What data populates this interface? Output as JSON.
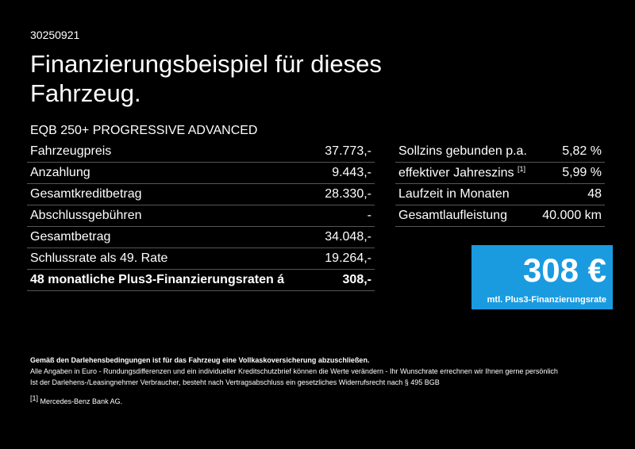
{
  "code": "30250921",
  "title": "Finanzierungsbeispiel für dieses Fahrzeug.",
  "model": "EQB 250+ PROGRESSIVE ADVANCED",
  "left_table": {
    "rows": [
      [
        "Fahrzeugpreis",
        "37.773,-"
      ],
      [
        "Anzahlung",
        "9.443,-"
      ],
      [
        "Gesamtkreditbetrag",
        "28.330,-"
      ],
      [
        "Abschlussgebühren",
        "-"
      ],
      [
        "Gesamtbetrag",
        "34.048,-"
      ],
      [
        "Schlussrate als 49. Rate",
        "19.264,-"
      ],
      [
        "48 monatliche Plus3-Finanzierungsraten á",
        "308,-"
      ]
    ]
  },
  "right_table": {
    "rows": [
      {
        "label": "Sollzins gebunden p.a.",
        "value": "5,82 %"
      },
      {
        "label": "effektiver Jahreszins",
        "note": "[1]",
        "value": "5,99 %"
      },
      {
        "label": "Laufzeit in Monaten",
        "value": "48"
      },
      {
        "label": "Gesamtlaufleistung",
        "value": "40.000 km"
      }
    ]
  },
  "rate": {
    "amount": "308 €",
    "label": "mtl. Plus3-Finanzierungsrate"
  },
  "footer": {
    "bold": "Gemäß den Darlehensbedingungen ist für das Fahrzeug eine Vollkaskoversicherung abzuschließen.",
    "lines": [
      "Alle Angaben in Euro - Rundungsdifferenzen und ein individueller Kreditschutzbrief können die Werte verändern - Ihr Wunschrate errechnen wir Ihnen gerne persönlich",
      "Ist der Darlehens-/Leasingnehmer Verbraucher, besteht nach Vertragsabschluss ein gesetzliches Widerrufsrecht nach § 495 BGB"
    ],
    "note_marker": "[1]",
    "note": "Mercedes-Benz Bank AG."
  }
}
